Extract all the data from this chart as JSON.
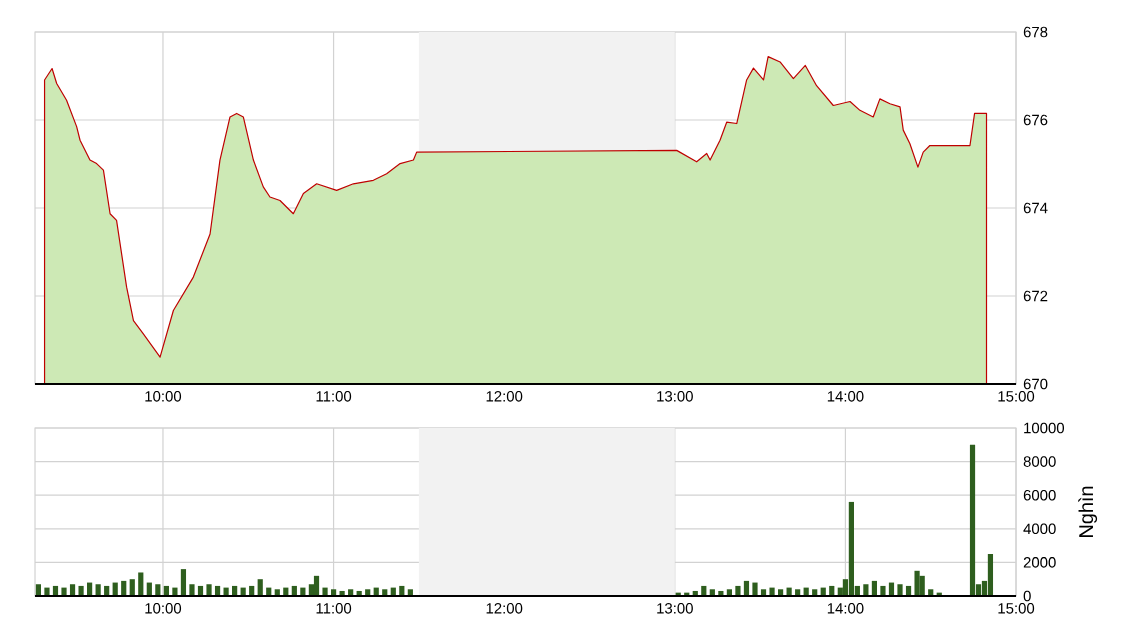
{
  "chart_data": [
    {
      "type": "area",
      "color": "#cde9b5",
      "grid": true,
      "x": [
        9.306,
        9.35,
        9.377,
        9.435,
        9.494,
        9.514,
        9.572,
        9.611,
        9.651,
        9.69,
        9.728,
        9.787,
        9.827,
        9.885,
        9.983,
        10.061,
        10.178,
        10.276,
        10.334,
        10.393,
        10.432,
        10.471,
        10.53,
        10.588,
        10.627,
        10.686,
        10.764,
        10.823,
        10.901,
        11.018,
        11.116,
        11.233,
        11.311,
        11.39,
        11.468,
        11.487,
        13.011,
        13.128,
        13.187,
        13.207,
        13.265,
        13.304,
        13.363,
        13.421,
        13.461,
        13.52,
        13.547,
        13.617,
        13.695,
        13.765,
        13.831,
        13.929,
        14.027,
        14.085,
        14.163,
        14.202,
        14.261,
        14.32,
        14.339,
        14.378,
        14.425,
        14.456,
        14.495,
        14.73,
        14.757,
        14.827
      ],
      "values": [
        676.91,
        677.17,
        676.83,
        676.45,
        675.85,
        675.54,
        675.09,
        675.01,
        674.86,
        673.87,
        673.72,
        672.2,
        671.44,
        671.14,
        670.61,
        671.67,
        672.43,
        673.41,
        675.09,
        676.07,
        676.15,
        676.07,
        675.09,
        674.48,
        674.25,
        674.17,
        673.87,
        674.33,
        674.55,
        674.4,
        674.55,
        674.63,
        674.78,
        675.01,
        675.09,
        675.27,
        675.31,
        675.05,
        675.24,
        675.09,
        675.54,
        675.95,
        675.92,
        676.91,
        677.18,
        676.91,
        677.44,
        677.32,
        676.94,
        677.24,
        676.78,
        676.33,
        676.42,
        676.22,
        676.07,
        676.48,
        676.37,
        676.3,
        675.77,
        675.46,
        674.93,
        675.27,
        675.42,
        675.42,
        676.15,
        676.15
      ],
      "xlim": [
        9.25,
        15
      ],
      "xticks": [
        {
          "value": 10,
          "label": "10:00"
        },
        {
          "value": 11,
          "label": "11:00"
        },
        {
          "value": 12,
          "label": "12:00"
        },
        {
          "value": 13,
          "label": "13:00"
        },
        {
          "value": 14,
          "label": "14:00"
        },
        {
          "value": 15,
          "label": "15:00"
        }
      ],
      "ylim": [
        670,
        678
      ],
      "yticks": [
        670,
        672,
        674,
        676,
        678
      ],
      "bands": [
        {
          "axis": "x",
          "from": 11.5,
          "to": 13,
          "color": "#f2f2f2"
        }
      ]
    },
    {
      "type": "bar",
      "color": "#2e5e1e",
      "grid": true,
      "ylabel": "Nghìn",
      "x": [
        9.27,
        9.32,
        9.37,
        9.42,
        9.47,
        9.52,
        9.57,
        9.62,
        9.67,
        9.72,
        9.77,
        9.82,
        9.87,
        9.92,
        9.97,
        10.02,
        10.07,
        10.12,
        10.17,
        10.22,
        10.27,
        10.32,
        10.37,
        10.42,
        10.47,
        10.52,
        10.57,
        10.62,
        10.67,
        10.72,
        10.77,
        10.82,
        10.87,
        10.9,
        10.95,
        11.0,
        11.05,
        11.1,
        11.15,
        11.2,
        11.25,
        11.3,
        11.35,
        11.4,
        11.45,
        13.02,
        13.07,
        13.12,
        13.17,
        13.22,
        13.27,
        13.32,
        13.37,
        13.42,
        13.47,
        13.52,
        13.57,
        13.62,
        13.67,
        13.72,
        13.77,
        13.82,
        13.87,
        13.92,
        13.97,
        14.0,
        14.035,
        14.07,
        14.12,
        14.17,
        14.22,
        14.27,
        14.32,
        14.37,
        14.42,
        14.45,
        14.5,
        14.55,
        14.745,
        14.78,
        14.815,
        14.85
      ],
      "values": [
        700,
        500,
        600,
        500,
        700,
        600,
        800,
        700,
        600,
        800,
        900,
        1000,
        1400,
        800,
        700,
        600,
        500,
        1600,
        700,
        600,
        700,
        600,
        500,
        600,
        500,
        600,
        1000,
        500,
        400,
        500,
        600,
        500,
        700,
        1200,
        500,
        400,
        300,
        400,
        300,
        400,
        500,
        400,
        500,
        600,
        400,
        200,
        200,
        300,
        600,
        400,
        300,
        400,
        600,
        900,
        800,
        400,
        500,
        400,
        500,
        400,
        500,
        400,
        500,
        600,
        500,
        1000,
        5600,
        600,
        700,
        900,
        600,
        800,
        700,
        600,
        1500,
        1200,
        400,
        200,
        9000,
        700,
        900,
        2500
      ],
      "xlim": [
        9.25,
        15
      ],
      "xticks": [
        {
          "value": 10,
          "label": "10:00"
        },
        {
          "value": 11,
          "label": "11:00"
        },
        {
          "value": 12,
          "label": "12:00"
        },
        {
          "value": 13,
          "label": "13:00"
        },
        {
          "value": 14,
          "label": "14:00"
        },
        {
          "value": 15,
          "label": "15:00"
        }
      ],
      "ylim": [
        0,
        10000
      ],
      "yticks": [
        0,
        2000,
        4000,
        6000,
        8000,
        10000
      ],
      "bands": [
        {
          "axis": "x",
          "from": 11.5,
          "to": 13,
          "color": "#f2f2f2"
        }
      ]
    }
  ]
}
